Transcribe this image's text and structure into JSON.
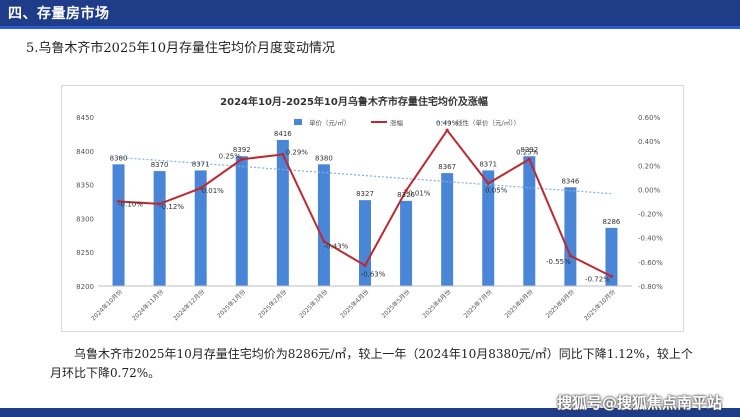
{
  "header": {
    "title": "四、存量房市场"
  },
  "section": {
    "heading": "5.乌鲁木齐市2025年10月存量住宅均价月度变动情况"
  },
  "summary": {
    "text": "乌鲁木齐市2025年10月存量住宅均价为8286元/㎡，较上一年（2024年10月8380元/㎡）同比下降1.12%，较上个月环比下降0.72%。"
  },
  "watermark": {
    "text": "搜狐号@搜狐焦点南平站"
  },
  "colors": {
    "header": "#1f3c88",
    "bar": "#4a86d8",
    "line": "#c0282f",
    "trend": "#7fb0e3"
  },
  "chart_data": {
    "type": "bar",
    "title": "2024年10月-2025年10月乌鲁木齐市存量住宅均价及涨幅",
    "categories": [
      "2024年10月份",
      "2024年11月份",
      "2024年12月份",
      "2025年1月份",
      "2025年2月份",
      "2025年3月份",
      "2025年4月份",
      "2025年5月份",
      "2025年6月份",
      "2025年7月份",
      "2025年8月份",
      "2025年9月份",
      "2025年10月份"
    ],
    "series": [
      {
        "name": "单价（元/㎡）",
        "type": "bar",
        "axis": "left",
        "values": [
          8380,
          8370,
          8371,
          8392,
          8416,
          8380,
          8327,
          8326,
          8367,
          8371,
          8392,
          8346,
          8286
        ],
        "labels": [
          "8380",
          "8370",
          "8371",
          "8392",
          "8416",
          "8380",
          "8327",
          "8326",
          "8367",
          "8371",
          "8392",
          "8346",
          "8286"
        ]
      },
      {
        "name": "涨幅",
        "type": "line",
        "axis": "right",
        "values": [
          -0.1,
          -0.12,
          0.01,
          0.25,
          0.29,
          -0.43,
          -0.63,
          -0.01,
          0.49,
          0.05,
          0.25,
          -0.55,
          -0.72
        ],
        "labels": [
          "-0.10%",
          "-0.12%",
          "0.01%",
          "0.25%",
          "0.29%",
          "-0.43%",
          "-0.63%",
          "-0.01%",
          "0.49%",
          "0.05%",
          "0.25%",
          "-0.55%",
          "-0.72%"
        ]
      },
      {
        "name": "线性（单价（元/㎡））",
        "type": "trendline",
        "axis": "left"
      }
    ],
    "y_left": {
      "lim": [
        8200,
        8450
      ],
      "ticks": [
        "8200",
        "8250",
        "8300",
        "8350",
        "8400",
        "8450"
      ]
    },
    "y_right": {
      "lim": [
        -0.8,
        0.6
      ],
      "ticks": [
        "-0.80%",
        "-0.60%",
        "-0.40%",
        "-0.20%",
        "0.00%",
        "0.20%",
        "0.40%",
        "0.60%"
      ]
    },
    "legend_position": "top",
    "grid": false
  }
}
